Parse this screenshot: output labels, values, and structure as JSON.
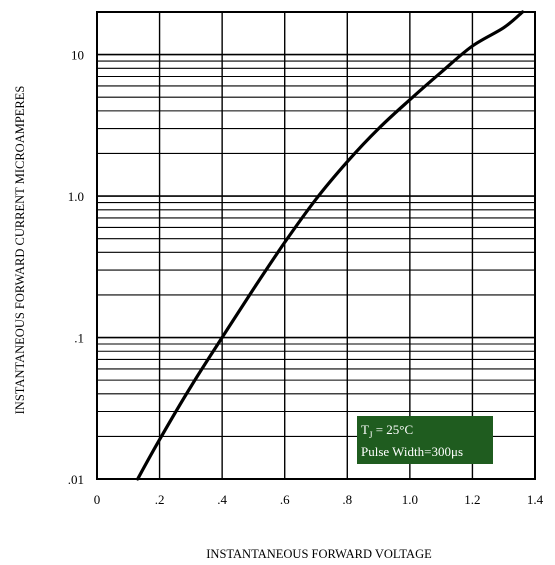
{
  "chart_data": {
    "type": "line",
    "title": "",
    "xlabel": "INSTANTANEOUS FORWARD VOLTAGE",
    "ylabel": "INSTANTANEOUS FORWARD CURRENT MICROAMPERES",
    "xlim": [
      0,
      1.4
    ],
    "ylim": [
      0.01,
      20
    ],
    "yscale": "log",
    "grid": true,
    "x_ticks": [
      "0",
      ".2",
      ".4",
      ".6",
      ".8",
      "1.0",
      "1.2",
      "1.4"
    ],
    "y_ticks": [
      {
        "value": 0.01,
        "label": ".01"
      },
      {
        "value": 0.1,
        "label": ".1"
      },
      {
        "value": 1.0,
        "label": "1.0"
      },
      {
        "value": 10,
        "label": "10"
      }
    ],
    "series": [
      {
        "name": "",
        "color": "#000000",
        "x": [
          0.13,
          0.2,
          0.3,
          0.4,
          0.5,
          0.6,
          0.7,
          0.8,
          0.9,
          1.0,
          1.1,
          1.2,
          1.3,
          1.36
        ],
        "y": [
          0.01,
          0.019,
          0.045,
          0.1,
          0.22,
          0.47,
          0.95,
          1.75,
          3.0,
          4.8,
          7.5,
          11.5,
          15.5,
          20
        ]
      }
    ],
    "legend": {
      "line1_main": "T",
      "line1_sub": "J",
      "line1_rest": " = 25°C",
      "line2": "Pulse Width=300μs",
      "background": "#1f5c1f",
      "position": "bottom-right"
    }
  }
}
